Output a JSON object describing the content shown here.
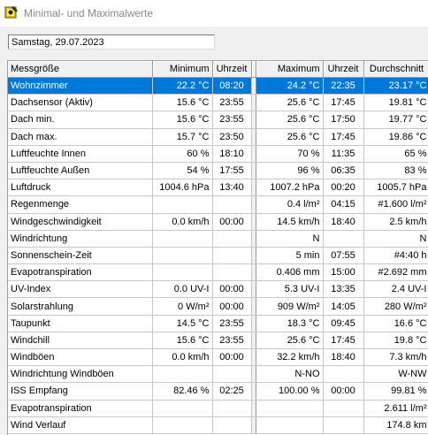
{
  "window": {
    "title": "Minimal- und Maximalwerte"
  },
  "date_field": {
    "value": "Samstag, 29.07.2023"
  },
  "table": {
    "headers": {
      "name": "Messgröße",
      "min": "Minimum",
      "min_time": "Uhrzeit",
      "max": "Maximum",
      "max_time": "Uhrzeit",
      "avg": "Durchschnitt"
    },
    "rows": [
      {
        "name": "Wohnzimmer",
        "min": "22.2 °C",
        "min_time": "08:20",
        "max": "24.2 °C",
        "max_time": "22:35",
        "avg": "23.17 °C"
      },
      {
        "name": "Dachsensor (Aktiv)",
        "min": "15.6 °C",
        "min_time": "23:55",
        "max": "25.6 °C",
        "max_time": "17:45",
        "avg": "19.81 °C"
      },
      {
        "name": "Dach min.",
        "min": "15.6 °C",
        "min_time": "23:55",
        "max": "25.6 °C",
        "max_time": "17:50",
        "avg": "19.77 °C"
      },
      {
        "name": "Dach max.",
        "min": "15.7 °C",
        "min_time": "23:50",
        "max": "25.6 °C",
        "max_time": "17:45",
        "avg": "19.86 °C"
      },
      {
        "name": "Luftfeuchte Innen",
        "min": "60 %",
        "min_time": "18:10",
        "max": "70 %",
        "max_time": "11:35",
        "avg": "65 %"
      },
      {
        "name": "Luftfeuchte Außen",
        "min": "54 %",
        "min_time": "17:55",
        "max": "96 %",
        "max_time": "06:35",
        "avg": "83 %"
      },
      {
        "name": "Luftdruck",
        "min": "1004.6 hPa",
        "min_time": "13:40",
        "max": "1007.2 hPa",
        "max_time": "00:20",
        "avg": "1005.7 hPa"
      },
      {
        "name": "Regenmenge",
        "min": "",
        "min_time": "",
        "max": "0.4 l/m²",
        "max_time": "04:15",
        "avg": "#1.600 l/m²"
      },
      {
        "name": "Windgeschwindigkeit",
        "min": "0.0 km/h",
        "min_time": "00:00",
        "max": "14.5 km/h",
        "max_time": "18:40",
        "avg": "2.5 km/h"
      },
      {
        "name": "Windrichtung",
        "min": "",
        "min_time": "",
        "max": "N",
        "max_time": "",
        "avg": "N"
      },
      {
        "name": "Sonnenschein-Zeit",
        "min": "",
        "min_time": "",
        "max": "5 min",
        "max_time": "07:55",
        "avg": "#4:40 h"
      },
      {
        "name": "Evapotranspiration",
        "min": "",
        "min_time": "",
        "max": "0.406 mm",
        "max_time": "15:00",
        "avg": "#2.692 mm"
      },
      {
        "name": "UV-Index",
        "min": "0.0 UV-I",
        "min_time": "00:00",
        "max": "5.3 UV-I",
        "max_time": "13:35",
        "avg": "2.4 UV-I"
      },
      {
        "name": "Solarstrahlung",
        "min": "0 W/m²",
        "min_time": "00:00",
        "max": "909 W/m²",
        "max_time": "14:05",
        "avg": "280 W/m²"
      },
      {
        "name": "Taupunkt",
        "min": "14.5 °C",
        "min_time": "23:55",
        "max": "18.3 °C",
        "max_time": "09:45",
        "avg": "16.6 °C"
      },
      {
        "name": "Windchill",
        "min": "15.6 °C",
        "min_time": "23:55",
        "max": "25.6 °C",
        "max_time": "17:45",
        "avg": "19.8 °C"
      },
      {
        "name": "Windböen",
        "min": "0.0 km/h",
        "min_time": "00:00",
        "max": "32.2 km/h",
        "max_time": "18:40",
        "avg": "7.3 km/h"
      },
      {
        "name": "Windrichtung Windböen",
        "min": "",
        "min_time": "",
        "max": "N-NO",
        "max_time": "",
        "avg": "W-NW"
      },
      {
        "name": "ISS Empfang",
        "min": "82.46 %",
        "min_time": "02:25",
        "max": "100.00 %",
        "max_time": "00:00",
        "avg": "99.81 %"
      },
      {
        "name": "Evapotranspiration",
        "min": "",
        "min_time": "",
        "max": "",
        "max_time": "",
        "avg": "2.611 l/m²"
      },
      {
        "name": "Wind Verlauf",
        "min": "",
        "min_time": "",
        "max": "",
        "max_time": "",
        "avg": "174.8 km"
      }
    ]
  }
}
